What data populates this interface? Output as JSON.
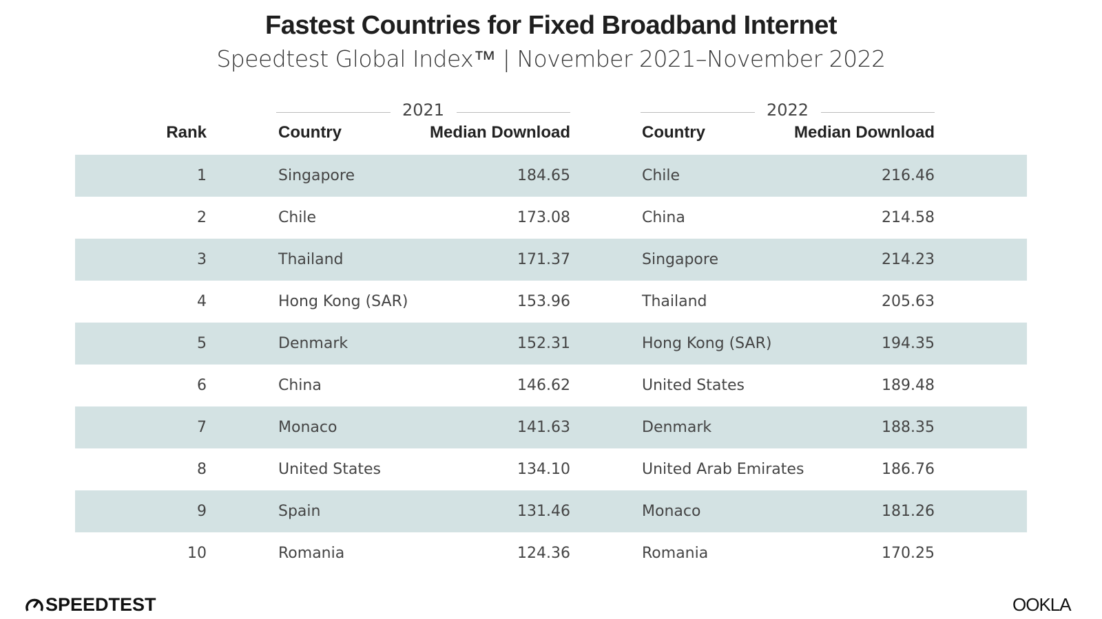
{
  "header": {
    "title": "Fastest Countries for Fixed Broadband Internet",
    "subtitle": "Speedtest Global Index™ | November 2021–November 2022"
  },
  "table": {
    "groups": [
      "2021",
      "2022"
    ],
    "columns": [
      "Rank",
      "Country",
      "Median Download",
      "Country",
      "Median Download"
    ],
    "rows": [
      [
        1,
        "Singapore",
        "184.65",
        "Chile",
        "216.46"
      ],
      [
        2,
        "Chile",
        "173.08",
        "China",
        "214.58"
      ],
      [
        3,
        "Thailand",
        "171.37",
        "Singapore",
        "214.23"
      ],
      [
        4,
        "Hong Kong (SAR)",
        "153.96",
        "Thailand",
        "205.63"
      ],
      [
        5,
        "Denmark",
        "152.31",
        "Hong Kong (SAR)",
        "194.35"
      ],
      [
        6,
        "China",
        "146.62",
        "United States",
        "189.48"
      ],
      [
        7,
        "Monaco",
        "141.63",
        "Denmark",
        "188.35"
      ],
      [
        8,
        "United States",
        "134.10",
        "United Arab Emirates",
        "186.76"
      ],
      [
        9,
        "Spain",
        "131.46",
        "Monaco",
        "181.26"
      ],
      [
        10,
        "Romania",
        "124.36",
        "Romania",
        "170.25"
      ]
    ]
  },
  "footer": {
    "left": "SPEEDTEST",
    "right": "OOKLA"
  }
}
